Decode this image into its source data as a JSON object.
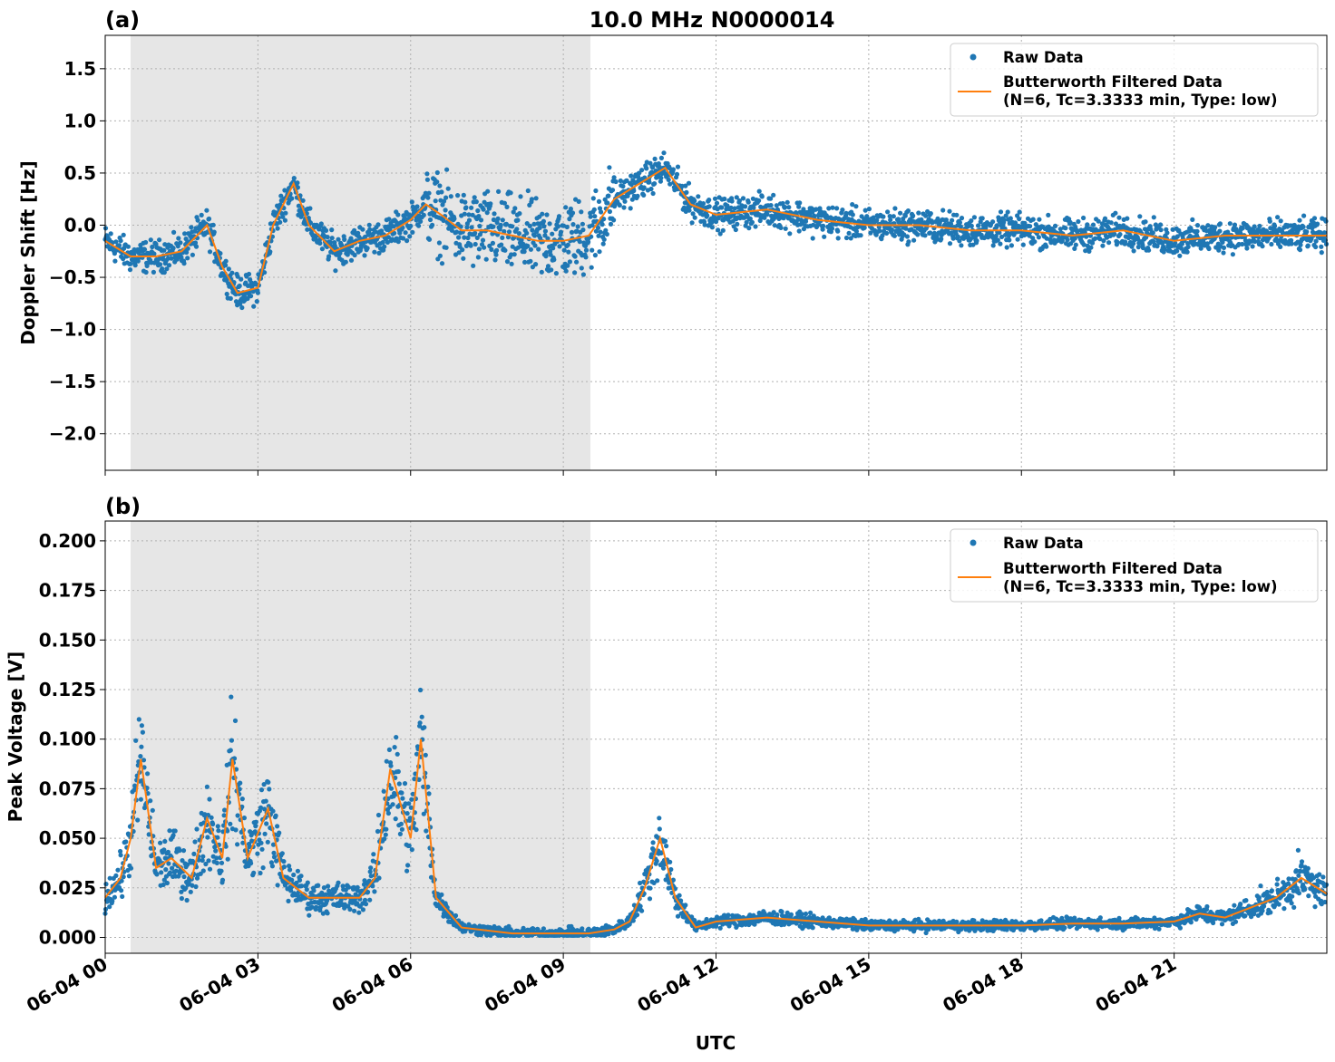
{
  "title": "10.0 MHz N0000014",
  "xlabel": "UTC",
  "x_ticks": [
    "06-04 00",
    "06-04 03",
    "06-04 06",
    "06-04 09",
    "06-04 12",
    "06-04 15",
    "06-04 18",
    "06-04 21"
  ],
  "colors": {
    "raw": "#1f77b4",
    "filtered": "#ff7f0e",
    "shade": "#e6e6e6"
  },
  "legend": {
    "raw": "Raw Data",
    "filtered_line1": "Butterworth Filtered Data",
    "filtered_line2": "(N=6, Tc=3.3333 min, Type: low)"
  },
  "chart_data": [
    {
      "type": "scatter",
      "panel_label": "(a)",
      "ylabel": "Doppler Shift [Hz]",
      "xlim_hours": [
        0,
        24
      ],
      "ylim": [
        -2.35,
        1.82
      ],
      "y_ticks": [
        "1.5",
        "1.0",
        "0.5",
        "0.0",
        "−0.5",
        "−1.0",
        "−1.5",
        "−2.0"
      ],
      "shaded_hours": [
        0.5,
        9.5
      ],
      "grid": true,
      "legend_position": "top-right",
      "series": [
        {
          "name": "Raw Data",
          "style": "points"
        },
        {
          "name": "Butterworth Filtered Data (N=6, Tc=3.3333 min, Type: low)",
          "style": "line",
          "x_hours": [
            0,
            0.5,
            1,
            1.5,
            2,
            2.3,
            2.6,
            3,
            3.3,
            3.7,
            4,
            4.5,
            5,
            5.5,
            6,
            6.3,
            6.6,
            7,
            7.5,
            8,
            8.5,
            9,
            9.5,
            10,
            10.5,
            11,
            11.5,
            12,
            13,
            14,
            15,
            16,
            17,
            18,
            19,
            20,
            21,
            22,
            23,
            24
          ],
          "y": [
            -0.15,
            -0.3,
            -0.3,
            -0.25,
            0.0,
            -0.4,
            -0.65,
            -0.6,
            0.0,
            0.4,
            0.0,
            -0.25,
            -0.15,
            -0.1,
            0.05,
            0.2,
            0.1,
            -0.05,
            -0.05,
            -0.1,
            -0.15,
            -0.15,
            -0.1,
            0.25,
            0.4,
            0.55,
            0.2,
            0.1,
            0.15,
            0.05,
            0.0,
            0.0,
            -0.05,
            -0.05,
            -0.1,
            -0.05,
            -0.15,
            -0.1,
            -0.1,
            -0.1
          ]
        }
      ]
    },
    {
      "type": "scatter",
      "panel_label": "(b)",
      "ylabel": "Peak Voltage [V]",
      "xlim_hours": [
        0,
        24
      ],
      "ylim": [
        -0.008,
        0.21
      ],
      "y_ticks": [
        "0.200",
        "0.175",
        "0.150",
        "0.125",
        "0.100",
        "0.075",
        "0.050",
        "0.025",
        "0.000"
      ],
      "shaded_hours": [
        0.5,
        9.5
      ],
      "grid": true,
      "legend_position": "top-right",
      "series": [
        {
          "name": "Raw Data",
          "style": "points"
        },
        {
          "name": "Butterworth Filtered Data (N=6, Tc=3.3333 min, Type: low)",
          "style": "line",
          "x_hours": [
            0,
            0.3,
            0.5,
            0.7,
            1,
            1.3,
            1.7,
            2,
            2.3,
            2.5,
            2.8,
            3.2,
            3.5,
            4,
            4.5,
            5,
            5.3,
            5.6,
            6.0,
            6.2,
            6.5,
            7,
            8,
            9,
            9.5,
            10,
            10.3,
            10.6,
            10.9,
            11.2,
            11.6,
            12,
            13,
            14,
            15,
            16,
            17,
            18,
            19,
            20,
            21,
            21.5,
            22,
            22.5,
            23,
            23.5,
            24
          ],
          "y": [
            0.02,
            0.03,
            0.05,
            0.09,
            0.035,
            0.04,
            0.03,
            0.06,
            0.04,
            0.09,
            0.04,
            0.065,
            0.03,
            0.02,
            0.02,
            0.02,
            0.03,
            0.085,
            0.05,
            0.1,
            0.02,
            0.005,
            0.002,
            0.002,
            0.002,
            0.004,
            0.008,
            0.025,
            0.05,
            0.02,
            0.005,
            0.008,
            0.01,
            0.008,
            0.006,
            0.006,
            0.006,
            0.006,
            0.007,
            0.007,
            0.008,
            0.012,
            0.01,
            0.015,
            0.02,
            0.03,
            0.022
          ]
        }
      ]
    }
  ]
}
